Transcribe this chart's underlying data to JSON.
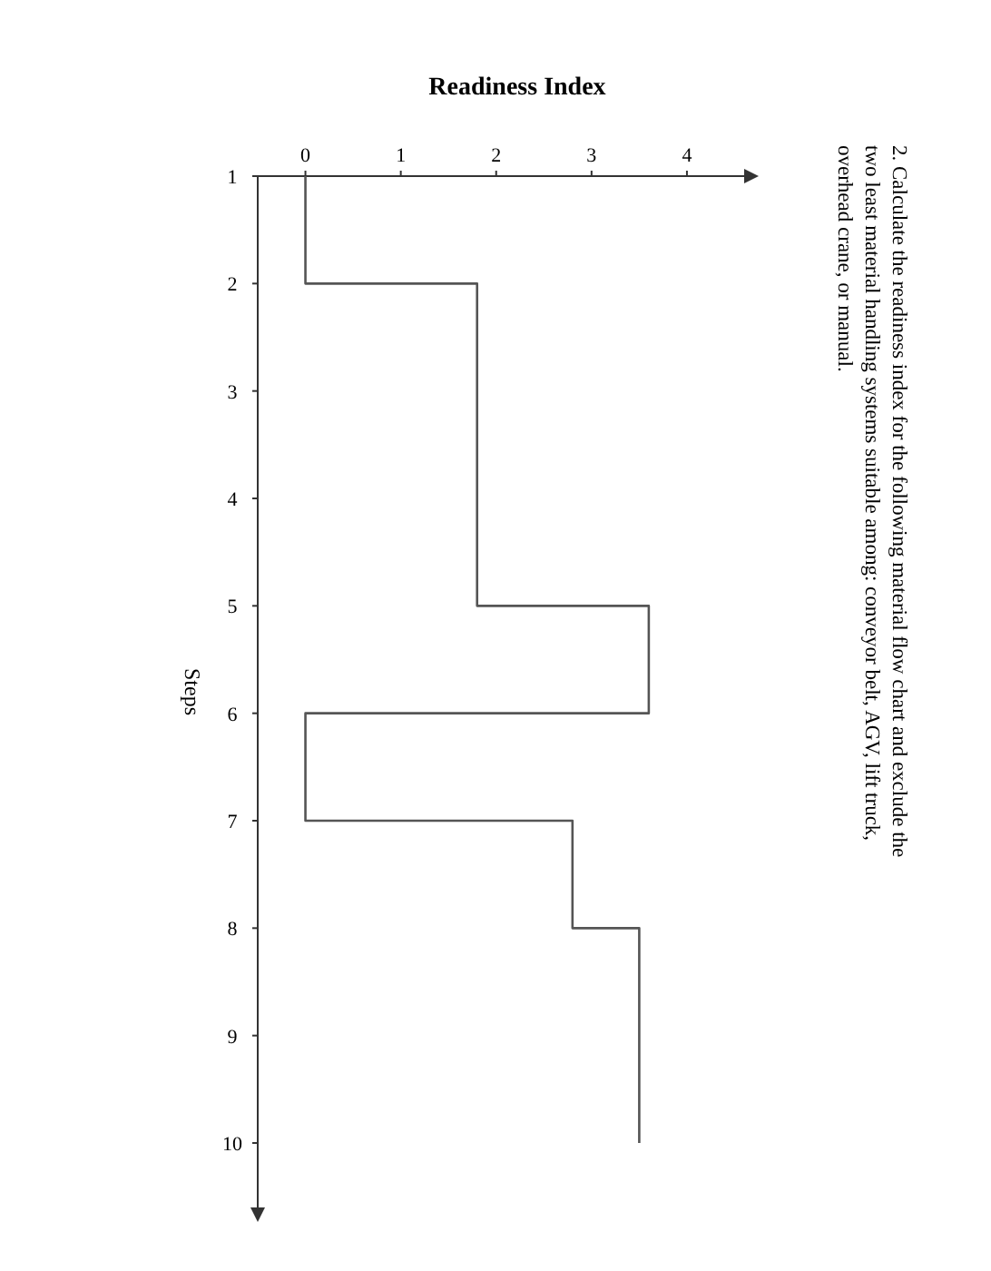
{
  "chart_data": {
    "type": "step",
    "orientation": "horizontal",
    "xlabel": "Readiness Index",
    "ylabel": "Steps",
    "annotations": [
      "2. Calculate the readiness index for the following material flow chart and exclude the two least material handling systems suitable among: conveyor belt, AGV, lift truck, overhead crane, or manual."
    ],
    "x": [
      1,
      2,
      5,
      6,
      7,
      8,
      10
    ],
    "values": [
      0,
      1.8,
      3.6,
      0,
      2.8,
      3.5,
      3.5
    ],
    "color": "#555555",
    "xlim": [
      -0.5,
      4.6
    ],
    "xticks": [
      0,
      1,
      2,
      3,
      4
    ],
    "ylim": [
      10.6,
      1
    ],
    "yticks": [
      1,
      2,
      3,
      4,
      5,
      6,
      7,
      8,
      9,
      10
    ]
  }
}
